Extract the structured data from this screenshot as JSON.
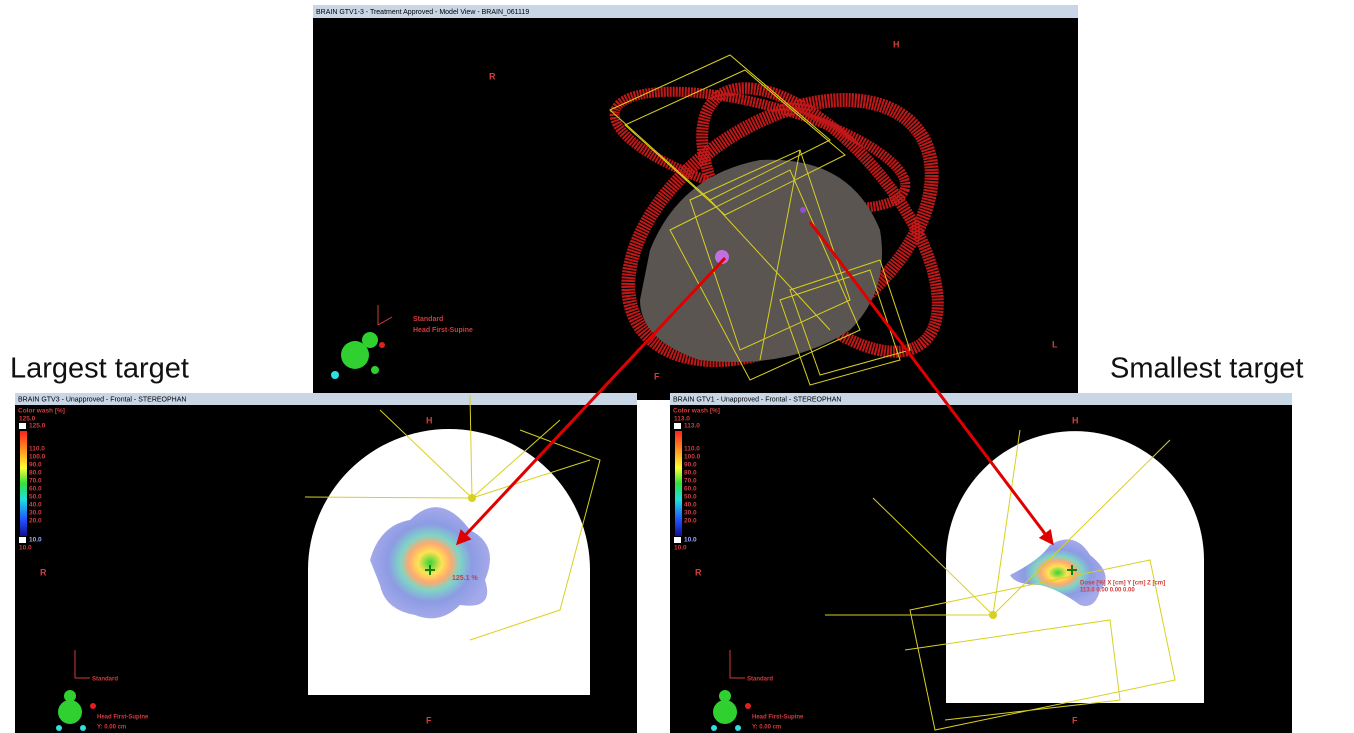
{
  "labels": {
    "left": "Largest target",
    "right": "Smallest target"
  },
  "top_view": {
    "title": "BRAIN GTV1-3 - Treatment Approved - Model View - BRAIN_061119",
    "orientation": {
      "head": "H",
      "right": "R",
      "left": "L",
      "feet": "F"
    },
    "view_name": "Standard",
    "patient_position": "Head First-Supine"
  },
  "left_view": {
    "title": "BRAIN GTV3 - Unapproved - Frontal - STEREOPHAN",
    "color_wash": {
      "title": "Color wash [%]",
      "max": "125.0",
      "max_box": "125.0",
      "ticks": [
        "110.0",
        "100.0",
        "90.0",
        "80.0",
        "70.0",
        "60.0",
        "50.0",
        "40.0",
        "30.0",
        "20.0"
      ],
      "min_box": "10.0",
      "min": "10.0"
    },
    "orientation": {
      "head": "H",
      "right": "R",
      "feet": "F"
    },
    "dose_label": "125.1 %",
    "view_name": "Standard",
    "patient_position": "Head First-Supine",
    "slice": "Y: 0.00 cm"
  },
  "right_view": {
    "title": "BRAIN GTV1 - Unapproved - Frontal - STEREOPHAN",
    "color_wash": {
      "title": "Color wash [%]",
      "max": "113.0",
      "max_box": "113.0",
      "ticks": [
        "110.0",
        "100.0",
        "90.0",
        "80.0",
        "70.0",
        "60.0",
        "50.0",
        "40.0",
        "30.0",
        "20.0"
      ],
      "min_box": "10.0",
      "min": "10.0"
    },
    "orientation": {
      "head": "H",
      "right": "R",
      "feet": "F"
    },
    "tooltip": [
      "Dose [%]  X [cm]  Y [cm]  Z [cm]",
      "113.0    0.00    0.00    0.00"
    ],
    "view_name": "Standard",
    "patient_position": "Head First-Supine",
    "slice": "Y: 0.00 cm"
  }
}
